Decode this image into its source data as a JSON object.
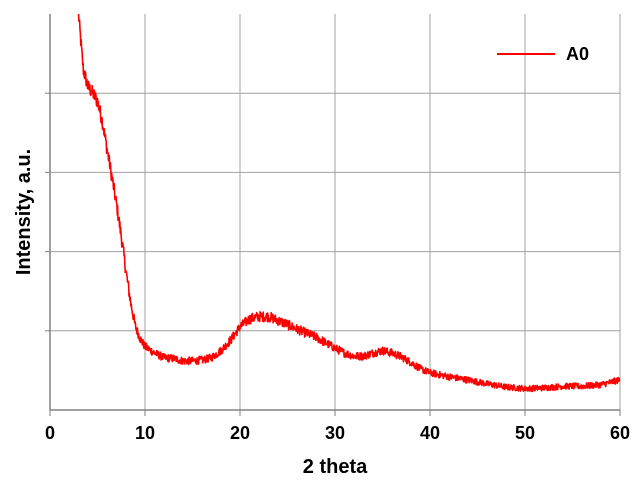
{
  "chart_data": {
    "type": "line",
    "title": "",
    "xlabel": "2 theta",
    "ylabel": "Intensity, a.u.",
    "xlim": [
      0,
      60
    ],
    "ylim": [
      0,
      5
    ],
    "x_ticks": [
      0,
      10,
      20,
      30,
      40,
      50,
      60
    ],
    "y_gridlines": [
      1,
      2,
      3,
      4
    ],
    "grid": true,
    "y_tick_labels": false,
    "legend": {
      "position": "top-right"
    },
    "series": [
      {
        "name": "A0",
        "color": "#ff0000",
        "noise": 0.03,
        "points": [
          [
            3.0,
            5.0
          ],
          [
            3.5,
            4.3
          ],
          [
            4.0,
            4.08
          ],
          [
            4.5,
            4.0
          ],
          [
            5.0,
            3.9
          ],
          [
            5.5,
            3.65
          ],
          [
            6.0,
            3.3
          ],
          [
            6.5,
            2.95
          ],
          [
            7.0,
            2.6
          ],
          [
            7.5,
            2.2
          ],
          [
            8.0,
            1.75
          ],
          [
            8.5,
            1.35
          ],
          [
            9.0,
            1.05
          ],
          [
            9.5,
            0.9
          ],
          [
            10.0,
            0.8
          ],
          [
            11.0,
            0.72
          ],
          [
            12.0,
            0.66
          ],
          [
            13.0,
            0.65
          ],
          [
            14.0,
            0.62
          ],
          [
            15.0,
            0.62
          ],
          [
            16.0,
            0.63
          ],
          [
            17.0,
            0.66
          ],
          [
            18.0,
            0.75
          ],
          [
            19.0,
            0.88
          ],
          [
            20.0,
            1.05
          ],
          [
            21.0,
            1.15
          ],
          [
            22.0,
            1.18
          ],
          [
            23.0,
            1.18
          ],
          [
            24.0,
            1.13
          ],
          [
            25.0,
            1.08
          ],
          [
            26.0,
            1.02
          ],
          [
            27.0,
            0.97
          ],
          [
            28.0,
            0.92
          ],
          [
            29.0,
            0.85
          ],
          [
            30.0,
            0.78
          ],
          [
            31.0,
            0.72
          ],
          [
            32.0,
            0.68
          ],
          [
            33.0,
            0.68
          ],
          [
            34.0,
            0.72
          ],
          [
            35.0,
            0.75
          ],
          [
            36.0,
            0.72
          ],
          [
            37.0,
            0.67
          ],
          [
            38.0,
            0.6
          ],
          [
            39.0,
            0.52
          ],
          [
            40.0,
            0.47
          ],
          [
            42.0,
            0.42
          ],
          [
            44.0,
            0.38
          ],
          [
            46.0,
            0.33
          ],
          [
            48.0,
            0.29
          ],
          [
            50.0,
            0.27
          ],
          [
            52.0,
            0.28
          ],
          [
            54.0,
            0.3
          ],
          [
            56.0,
            0.3
          ],
          [
            58.0,
            0.32
          ],
          [
            60.0,
            0.38
          ]
        ]
      }
    ]
  }
}
